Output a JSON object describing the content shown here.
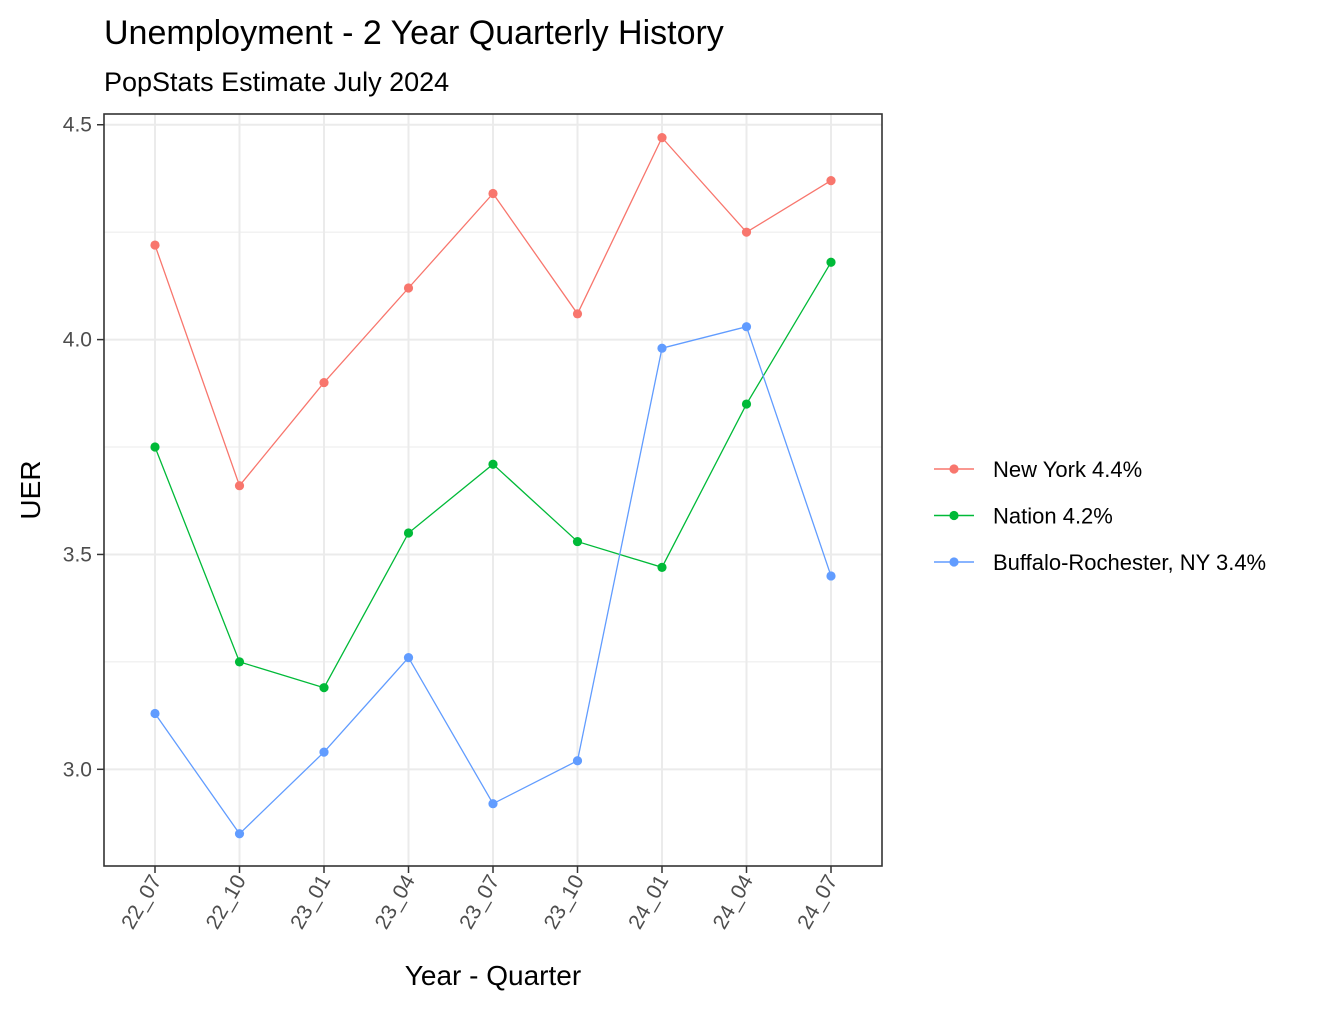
{
  "chart_data": {
    "type": "line",
    "title": "Unemployment - 2 Year Quarterly History",
    "subtitle": "PopStats Estimate July 2024",
    "xlabel": "Year - Quarter",
    "ylabel": "UER",
    "categories": [
      "22_07",
      "22_10",
      "23_01",
      "23_04",
      "23_07",
      "23_10",
      "24_01",
      "24_04",
      "24_07"
    ],
    "ylim": [
      2.775,
      4.525
    ],
    "yticks": [
      3.0,
      3.5,
      4.0,
      4.5
    ],
    "ytick_labels": [
      "3.0",
      "3.5",
      "4.0",
      "4.5"
    ],
    "grid": true,
    "legend_position": "right",
    "series": [
      {
        "name": "New York 4.4%",
        "color": "#F8766D",
        "values": [
          4.22,
          3.66,
          3.9,
          4.12,
          4.34,
          4.06,
          4.47,
          4.25,
          4.37
        ]
      },
      {
        "name": "Nation 4.2%",
        "color": "#00BA38",
        "values": [
          3.75,
          3.25,
          3.19,
          3.55,
          3.71,
          3.53,
          3.47,
          3.85,
          4.18
        ]
      },
      {
        "name": "Buffalo-Rochester, NY 3.4%",
        "color": "#619CFF",
        "values": [
          3.13,
          2.85,
          3.04,
          3.26,
          2.92,
          3.02,
          3.98,
          4.03,
          3.45
        ]
      }
    ]
  }
}
